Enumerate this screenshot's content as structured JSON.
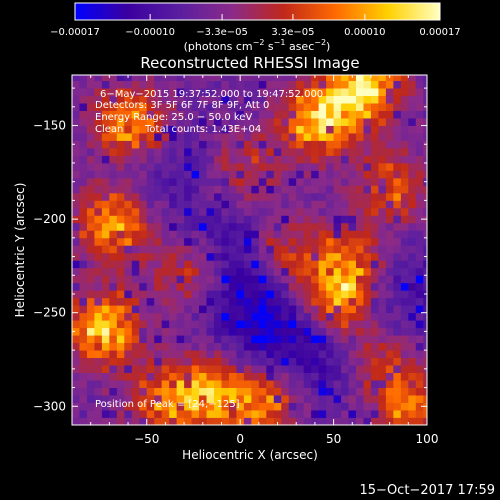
{
  "chart_data": {
    "type": "heatmap",
    "title": "Reconstructed RHESSI Image",
    "xlabel": "Heliocentric X (arcsec)",
    "ylabel": "Heliocentric Y (arcsec)",
    "xlim": [
      -90,
      100
    ],
    "ylim": [
      -310,
      -123
    ],
    "x_ticks": [
      -50,
      0,
      50,
      100
    ],
    "x_tick_labels": [
      "−50",
      "0",
      "50",
      "100"
    ],
    "y_ticks": [
      -150,
      -200,
      -250,
      -300
    ],
    "y_tick_labels": [
      "−150",
      "−200",
      "−250",
      "−300"
    ],
    "colorbar": {
      "min": -0.00017,
      "max": 0.00017,
      "ticks": [
        -0.00017,
        -0.0001,
        -3.3e-05,
        3.3e-05,
        0.0001,
        0.00017
      ],
      "tick_labels": [
        "−0.00017",
        "−0.00010",
        "−3.3e−05",
        "3.3e−05",
        "0.00010",
        "0.00017"
      ],
      "unit_prefix": "(photons cm",
      "unit_exp1": "−2",
      "unit_mid": " s",
      "unit_exp2": "−1",
      "unit_mid2": " asec",
      "unit_exp3": "−2",
      "unit_suffix": ")",
      "colormap": [
        "#0000ff",
        "#3a00a0",
        "#5a1ea0",
        "#8a2a8a",
        "#c0281a",
        "#ff6a00",
        "#ffd000",
        "#ffffc0"
      ]
    },
    "annotations": {
      "time": "6−May−2015 19:37:52.000 to 19:47:52.000",
      "detectors": "Detectors: 3F 5F 6F 7F 8F 9F, Att 0",
      "energy": "Energy Range: 25.0 − 50.0 keV",
      "clean": "Clean",
      "total_counts": "Total counts: 1.43E+04",
      "peak": "Position of Peak = [24,−125]"
    },
    "peak_position": [
      24,
      -125
    ],
    "features": [
      {
        "x": 65,
        "y": -130,
        "level": 1.0
      },
      {
        "x": 40,
        "y": -150,
        "level": 0.85
      },
      {
        "x": -60,
        "y": -150,
        "level": 0.75
      },
      {
        "x": -70,
        "y": -205,
        "level": 0.72
      },
      {
        "x": -75,
        "y": -260,
        "level": 0.82
      },
      {
        "x": -20,
        "y": -295,
        "level": 0.72
      },
      {
        "x": 10,
        "y": -300,
        "level": 0.6
      },
      {
        "x": -45,
        "y": -300,
        "level": 0.5
      },
      {
        "x": 50,
        "y": -245,
        "level": 0.65
      },
      {
        "x": 55,
        "y": -225,
        "level": 0.55
      },
      {
        "x": 20,
        "y": -220,
        "level": 0.45
      },
      {
        "x": 80,
        "y": -185,
        "level": 0.5
      },
      {
        "x": 90,
        "y": -305,
        "level": 0.55
      },
      {
        "x": -30,
        "y": -230,
        "level": 0.4
      },
      {
        "x": 0,
        "y": -175,
        "level": 0.35
      },
      {
        "x": 75,
        "y": -280,
        "level": 0.4
      }
    ],
    "lows": [
      {
        "x": 10,
        "y": -255,
        "level": 0.9
      },
      {
        "x": -5,
        "y": -220,
        "level": 0.7
      },
      {
        "x": 40,
        "y": -275,
        "level": 0.6
      },
      {
        "x": 90,
        "y": -240,
        "level": 0.5
      },
      {
        "x": -40,
        "y": -175,
        "level": 0.4
      }
    ]
  },
  "footer_date": "15−Oct−2017 17:59"
}
